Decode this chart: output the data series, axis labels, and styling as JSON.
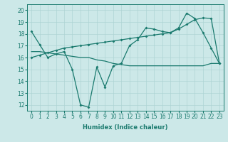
{
  "xlabel": "Humidex (Indice chaleur)",
  "x": [
    0,
    1,
    2,
    3,
    4,
    5,
    6,
    7,
    8,
    9,
    10,
    11,
    12,
    13,
    14,
    15,
    16,
    17,
    18,
    19,
    20,
    21,
    22,
    23
  ],
  "series1": [
    18.2,
    17.1,
    16.0,
    16.3,
    16.5,
    15.0,
    12.0,
    11.8,
    15.2,
    13.5,
    15.3,
    15.5,
    17.0,
    17.5,
    18.5,
    18.4,
    18.2,
    18.1,
    18.5,
    19.75,
    19.3,
    18.1,
    16.8,
    15.5
  ],
  "series2": [
    16.0,
    16.2,
    16.4,
    16.6,
    16.8,
    16.9,
    17.0,
    17.1,
    17.2,
    17.3,
    17.4,
    17.5,
    17.6,
    17.7,
    17.8,
    17.9,
    18.0,
    18.1,
    18.4,
    18.8,
    19.2,
    19.35,
    19.3,
    15.5
  ],
  "series3": [
    16.5,
    16.5,
    16.4,
    16.3,
    16.2,
    16.1,
    16.0,
    16.0,
    15.8,
    15.7,
    15.5,
    15.4,
    15.3,
    15.3,
    15.3,
    15.3,
    15.3,
    15.3,
    15.3,
    15.3,
    15.3,
    15.3,
    15.5,
    15.5
  ],
  "ylim": [
    11.5,
    20.5
  ],
  "yticks": [
    12,
    13,
    14,
    15,
    16,
    17,
    18,
    19,
    20
  ],
  "xticks": [
    0,
    1,
    2,
    3,
    4,
    5,
    6,
    7,
    8,
    9,
    10,
    11,
    12,
    13,
    14,
    15,
    16,
    17,
    18,
    19,
    20,
    21,
    22,
    23
  ],
  "color": "#1a7a6e",
  "bg_color": "#cce8e8",
  "grid_color": "#aed4d4",
  "marker": "D",
  "markersize": 2.0,
  "linewidth": 0.9,
  "xlabel_fontsize": 6.0,
  "tick_fontsize": 5.5
}
